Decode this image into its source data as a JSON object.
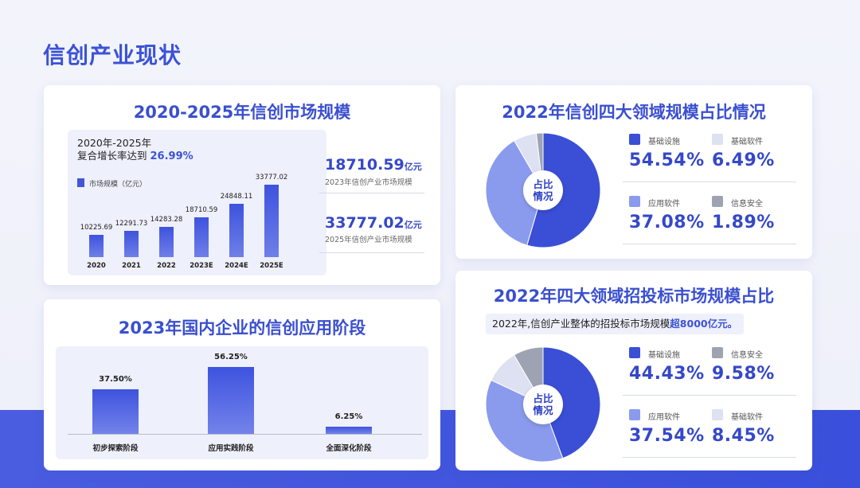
{
  "page": {
    "title": "信创产业现状"
  },
  "colors": {
    "accent": "#3b52d6",
    "bar": "#4256d8",
    "band": "#4358de"
  },
  "market": {
    "title": "2020-2025年信创市场规模",
    "cagr_line1": "2020年-2025年",
    "cagr_line2": "复合增长率达到",
    "cagr_value": "26.99%",
    "legend": "市场规模（亿元）",
    "highlight1_value": "18710.59",
    "highlight1_unit": "亿元",
    "highlight1_caption": "2023年信创产业市场规模",
    "highlight2_value": "33777.02",
    "highlight2_unit": "亿元",
    "highlight2_caption": "2025年信创产业市场规模"
  },
  "stages": {
    "title": "2023年国内企业的信创应用阶段"
  },
  "domains2022": {
    "title": "2022年信创四大领域规模占比情况",
    "center_line1": "占比",
    "center_line2": "情况",
    "items": [
      {
        "name": "基础设施",
        "pct": "54.54%"
      },
      {
        "name": "基础软件",
        "pct": "6.49%"
      },
      {
        "name": "应用软件",
        "pct": "37.08%"
      },
      {
        "name": "信息安全",
        "pct": "1.89%"
      }
    ]
  },
  "bidding2022": {
    "title": "2022年四大领域招投标市场规模占比",
    "banner_text": "2022年,信创产业整体的招投标市场规模",
    "banner_highlight": "超8000亿元。",
    "center_line1": "占比",
    "center_line2": "情况",
    "items": [
      {
        "name": "基础设施",
        "pct": "44.43%"
      },
      {
        "name": "信息安全",
        "pct": "9.58%"
      },
      {
        "name": "应用软件",
        "pct": "37.54%"
      },
      {
        "name": "基础软件",
        "pct": "8.45%"
      }
    ]
  },
  "chart_data": [
    {
      "type": "bar",
      "title": "2020-2025年信创市场规模",
      "categories": [
        "2020",
        "2021",
        "2022",
        "2023E",
        "2024E",
        "2025E"
      ],
      "series": [
        {
          "name": "市场规模（亿元）",
          "values": [
            10225.69,
            12291.73,
            14283.28,
            18710.59,
            24848.11,
            33777.02
          ]
        }
      ],
      "value_labels": [
        "10225.69",
        "12291.73",
        "14283.28",
        "18710.59",
        "24848.11",
        "33777.02"
      ],
      "ylim": [
        0,
        36000
      ]
    },
    {
      "type": "bar",
      "title": "2023年国内企业的信创应用阶段",
      "categories": [
        "初步探索阶段",
        "应用实践阶段",
        "全面深化阶段"
      ],
      "values": [
        37.5,
        56.25,
        6.25
      ],
      "value_labels": [
        "37.50%",
        "56.25%",
        "6.25%"
      ],
      "ylim": [
        0,
        60
      ]
    },
    {
      "type": "pie",
      "title": "2022年信创四大领域规模占比情况",
      "categories": [
        "基础设施",
        "应用软件",
        "基础软件",
        "信息安全"
      ],
      "values": [
        54.54,
        37.08,
        6.49,
        1.89
      ],
      "colors": [
        "#3a4fd6",
        "#8a9bee",
        "#dde1f2",
        "#9ea3b2"
      ]
    },
    {
      "type": "pie",
      "title": "2022年四大领域招投标市场规模占比",
      "categories": [
        "基础设施",
        "应用软件",
        "信息安全",
        "基础软件"
      ],
      "values": [
        44.43,
        37.54,
        9.58,
        8.45
      ],
      "colors": [
        "#3a4fd6",
        "#8a9bee",
        "#dde1f2",
        "#9ea3b2"
      ]
    }
  ]
}
